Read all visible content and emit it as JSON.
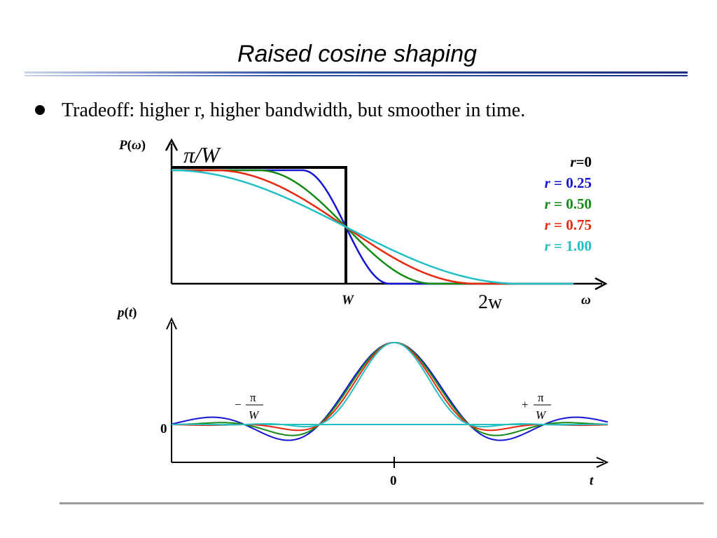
{
  "header": {
    "title": "Raised cosine shaping"
  },
  "bullet": "Tradeoff: higher r, higher bandwidth, but smoother in time.",
  "spectrum": {
    "ylabel": {
      "f": "P",
      "open": "(",
      "arg": "ω",
      "close": ")"
    },
    "height_label": "π/W",
    "w_label": "W",
    "w2_label": "2w",
    "xlabel": "ω"
  },
  "pulse": {
    "ylabel": {
      "f": "p",
      "open": "(",
      "arg": "t",
      "close": ")"
    },
    "zero_y": "0",
    "zero_x": "0",
    "xlabel": "t",
    "left_mark": {
      "sign": "−",
      "num": "π",
      "den": "W"
    },
    "right_mark": {
      "sign": "+",
      "num": "π",
      "den": "W"
    }
  },
  "legend": [
    {
      "symbol": "r",
      "text": "=0",
      "color": "#000000"
    },
    {
      "symbol": "r",
      "text": " = 0.25",
      "color": "#1414d2"
    },
    {
      "symbol": "r",
      "text": " = 0.50",
      "color": "#138a13"
    },
    {
      "symbol": "r",
      "text": " = 0.75",
      "color": "#e8280e"
    },
    {
      "symbol": "r",
      "text": " = 1.00",
      "color": "#22bfc4"
    }
  ]
}
